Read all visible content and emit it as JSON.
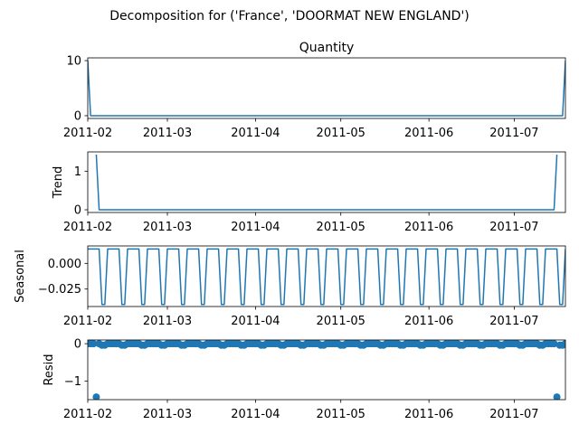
{
  "figure_title": "Decomposition for ('France', 'DOORMAT NEW ENGLAND')",
  "colors": {
    "line": "#1f77b4",
    "axes": "#000000",
    "background": "#ffffff"
  },
  "chart_data": [
    {
      "type": "line",
      "title": "Quantity",
      "ylabel": "",
      "x_start": "2011-02-01",
      "x_end": "2011-07-19",
      "xlim": [
        "2011-02-01",
        "2011-07-19"
      ],
      "ylim": [
        -0.5,
        10.5
      ],
      "yticks": [
        0,
        10
      ],
      "ytick_labels": [
        "0",
        "10"
      ],
      "xtick_labels": [
        "2011-02",
        "2011-03",
        "2011-04",
        "2011-05",
        "2011-06",
        "2011-07"
      ],
      "points": [
        {
          "x": "2011-02-01",
          "y": 10
        },
        {
          "x": "2011-02-02",
          "y": 0
        },
        {
          "x": "2011-07-18",
          "y": 0
        },
        {
          "x": "2011-07-19",
          "y": 10
        }
      ]
    },
    {
      "type": "line",
      "title": "",
      "ylabel": "Trend",
      "xlim": [
        "2011-02-01",
        "2011-07-19"
      ],
      "ylim": [
        -0.07,
        1.5
      ],
      "yticks": [
        0,
        1
      ],
      "ytick_labels": [
        "0",
        "1"
      ],
      "xtick_labels": [
        "2011-02",
        "2011-03",
        "2011-04",
        "2011-05",
        "2011-06",
        "2011-07"
      ],
      "points": [
        {
          "x": "2011-02-04",
          "y": 1.43
        },
        {
          "x": "2011-02-05",
          "y": 0
        },
        {
          "x": "2011-07-15",
          "y": 0
        },
        {
          "x": "2011-07-16",
          "y": 1.43
        }
      ]
    },
    {
      "type": "line",
      "title": "",
      "ylabel": "Seasonal",
      "xlim": [
        "2011-02-01",
        "2011-07-19"
      ],
      "ylim": [
        -0.042,
        0.017
      ],
      "yticks": [
        0.0,
        -0.025
      ],
      "ytick_labels": [
        "0.000",
        "−0.025"
      ],
      "xtick_labels": [
        "2011-02",
        "2011-03",
        "2011-04",
        "2011-05",
        "2011-06",
        "2011-07"
      ],
      "period_days": 7,
      "weekly_pattern": [
        0.014,
        0.014,
        0.014,
        0.014,
        0.014,
        -0.04,
        -0.04
      ]
    },
    {
      "type": "scatter",
      "title": "",
      "ylabel": "Resid",
      "xlim": [
        "2011-02-01",
        "2011-07-19"
      ],
      "ylim": [
        -1.5,
        0.1
      ],
      "yticks": [
        0,
        -1
      ],
      "ytick_labels": [
        "0",
        "−1"
      ],
      "xtick_labels": [
        "2011-02",
        "2011-03",
        "2011-04",
        "2011-05",
        "2011-06",
        "2011-07"
      ],
      "zero_line": true,
      "outliers": [
        {
          "x": "2011-02-04",
          "y": -1.43
        },
        {
          "x": "2011-07-16",
          "y": -1.43
        }
      ],
      "weekly_pattern": [
        0.0,
        0.0,
        0.0,
        0.0,
        0.0,
        -0.04,
        -0.04
      ]
    }
  ]
}
